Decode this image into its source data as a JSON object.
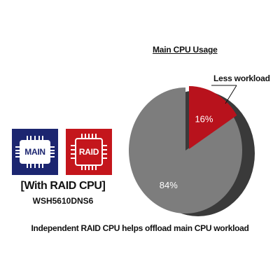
{
  "chart_data": {
    "type": "pie",
    "title": "Main CPU Usage",
    "slices": [
      {
        "label": "84%",
        "value": 84
      },
      {
        "label": "16%",
        "value": 16
      }
    ],
    "annotations": [
      "Less workload"
    ],
    "legend": "none",
    "three_d": true,
    "colors": {
      "main_slice": "#7d7d7d",
      "highlight_slice": "#b8121c",
      "side": "#3a3a3a"
    }
  },
  "chips": {
    "main_label": "MAIN",
    "raid_label": "RAID",
    "main_color": "#1c2670",
    "raid_color": "#c4161c"
  },
  "caption": {
    "config": "[With RAID CPU]",
    "model": "WSH5610DNS6"
  },
  "footer": "Independent RAID CPU helps offload main CPU workload"
}
